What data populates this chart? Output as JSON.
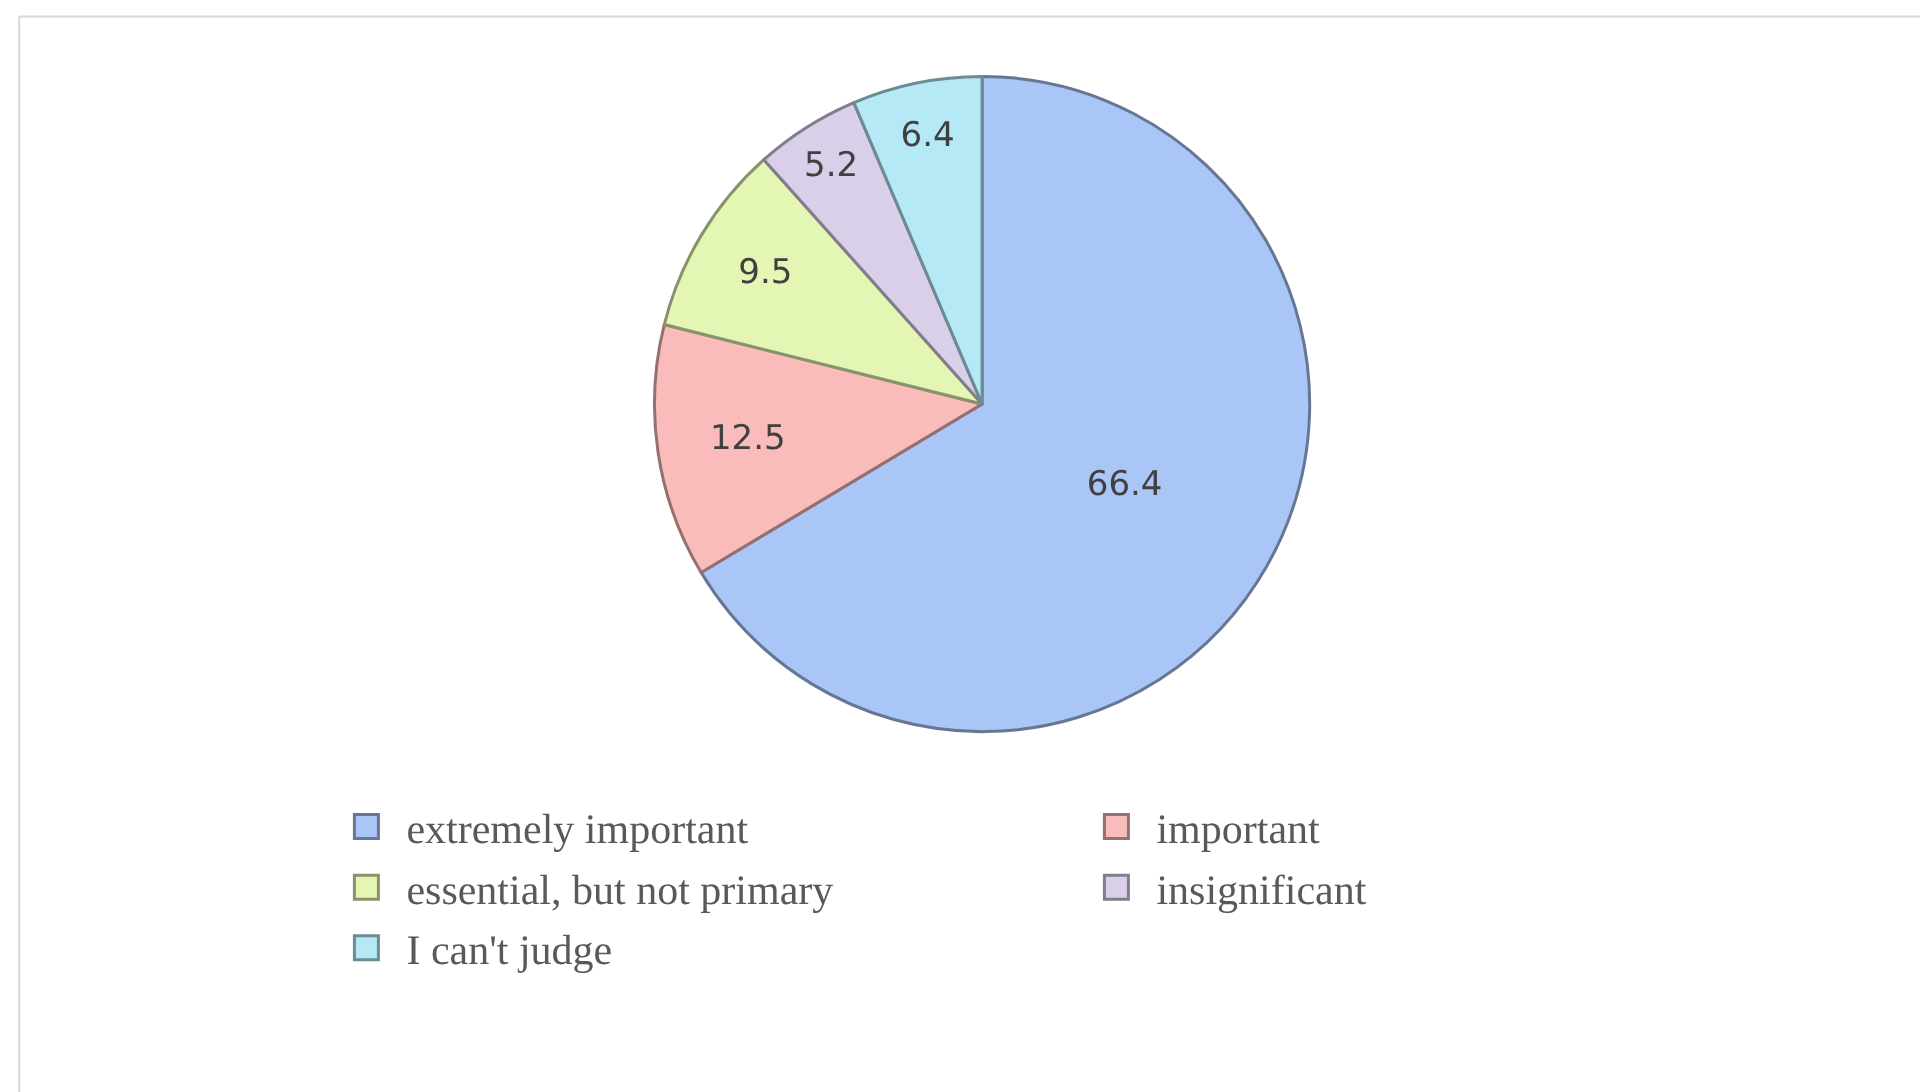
{
  "chart_data": {
    "type": "pie",
    "categories": [
      "extremely important",
      "important",
      "essential, but not primary",
      "insignificant",
      "I can't judge"
    ],
    "values": [
      66.4,
      12.5,
      9.5,
      5.2,
      6.4
    ],
    "colors": [
      "#aac6f6",
      "#f9bcba",
      "#e4f6b4",
      "#dacfe9",
      "#b5e9f6"
    ],
    "data_labels": true,
    "legend": "bottom"
  }
}
